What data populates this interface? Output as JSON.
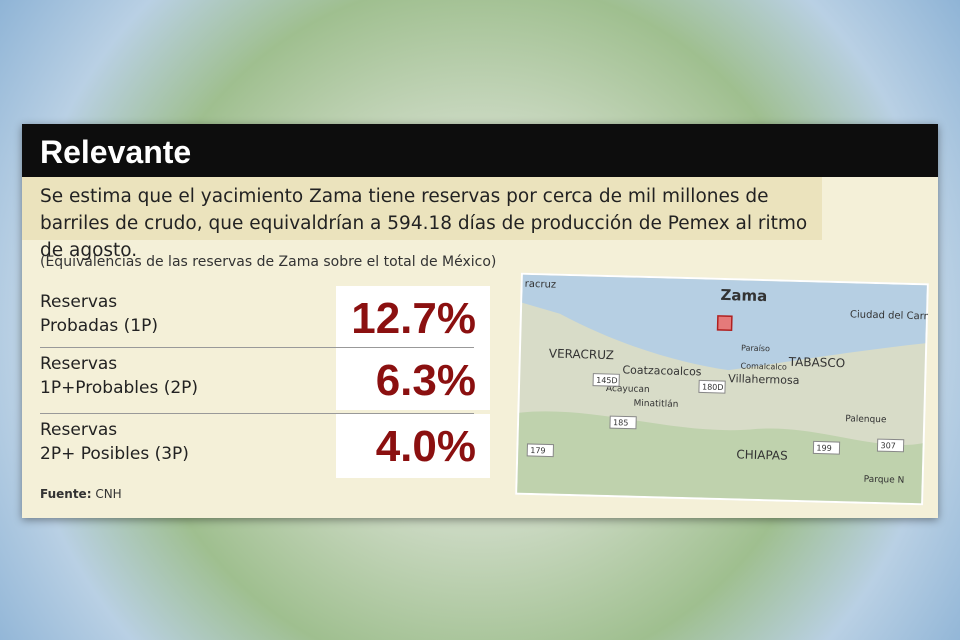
{
  "header": {
    "title": "Relevante"
  },
  "description": "Se estima que el yacimiento Zama tiene reservas por cerca de mil millones de barriles de crudo, que equivaldrían a 594.18 días de producción de Pemex al ritmo de agosto.",
  "subtitle": "(Equivalencias de las reservas de Zama sobre el total de México)",
  "table": {
    "rows": [
      {
        "label": [
          "Reservas",
          "Probadas (1P)"
        ],
        "value": "12.7%"
      },
      {
        "label": [
          "Reservas",
          "1P+Probables (2P)"
        ],
        "value": "6.3%"
      },
      {
        "label": [
          "Reservas",
          "2P+ Posibles (3P)"
        ],
        "value": "4.0%"
      }
    ]
  },
  "source": {
    "label": "Fuente:",
    "text": "CNH"
  },
  "map": {
    "labels": [
      "Zama",
      "racruz",
      "Ciudad del Carmen",
      "VERACRUZ",
      "TABASCO",
      "Paraíso",
      "Coatzacoalcos",
      "Comalcalco",
      "Villahermosa",
      "Acayucan",
      "Minatitlán",
      "Palenque",
      "CHIAPAS",
      "Parque N"
    ],
    "roads": [
      "145D",
      "180D",
      "185",
      "179",
      "199",
      "307"
    ]
  }
}
